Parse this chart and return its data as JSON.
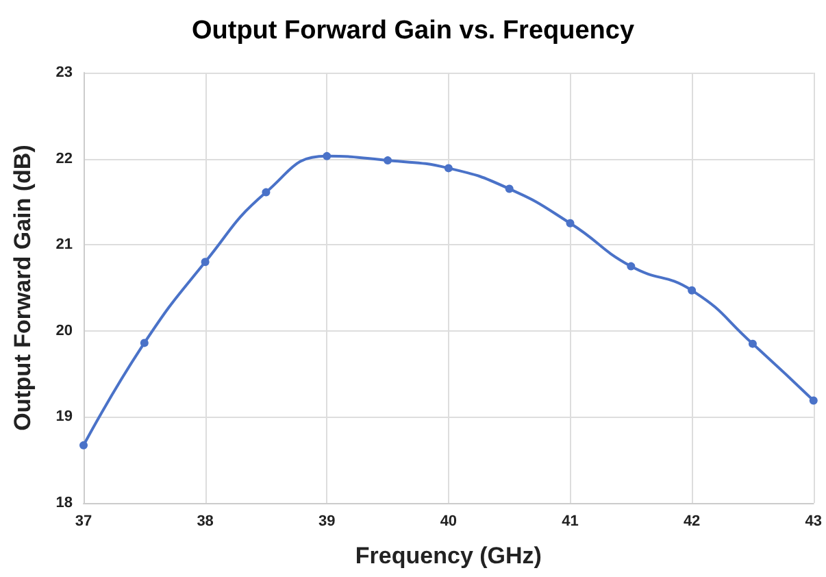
{
  "chart_data": {
    "type": "line",
    "title": "Output Forward Gain vs. Frequency",
    "xlabel": "Frequency (GHz)",
    "ylabel": "Output Forward Gain (dB)",
    "x": [
      37,
      37.5,
      38,
      38.5,
      39,
      39.5,
      40,
      40.5,
      41,
      41.5,
      42,
      42.5,
      43
    ],
    "series": [
      {
        "color": "#4a72c8",
        "values": [
          18.67,
          19.86,
          20.8,
          21.61,
          22.03,
          21.98,
          21.89,
          21.65,
          21.25,
          20.75,
          20.47,
          19.85,
          19.19
        ]
      }
    ],
    "xlim": [
      37,
      43
    ],
    "xticks": [
      37,
      38,
      39,
      40,
      41,
      42,
      43
    ],
    "ylim": [
      18,
      23
    ],
    "yticks": [
      18,
      19,
      20,
      21,
      22,
      23
    ],
    "grid": true,
    "marker": "circle",
    "line_style": "solid"
  }
}
